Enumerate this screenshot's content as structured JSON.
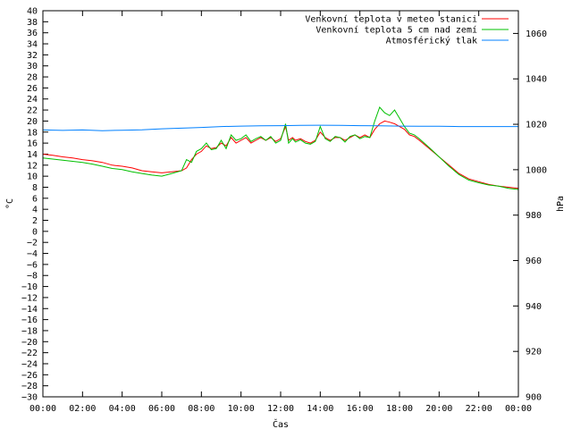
{
  "chart_data": {
    "type": "line",
    "xlabel": "Čas",
    "ylabel": "°C",
    "y2label": "hPa",
    "x_ticks": [
      "00:00",
      "02:00",
      "04:00",
      "06:00",
      "08:00",
      "10:00",
      "12:00",
      "14:00",
      "16:00",
      "18:00",
      "20:00",
      "22:00",
      "00:00"
    ],
    "xlim_hours": [
      0,
      24
    ],
    "ylim": [
      -30,
      40
    ],
    "y_ticks": [
      40,
      38,
      36,
      34,
      32,
      30,
      28,
      26,
      24,
      22,
      20,
      18,
      16,
      14,
      12,
      10,
      8,
      6,
      4,
      2,
      0,
      -2,
      -4,
      -6,
      -8,
      -10,
      -12,
      -14,
      -16,
      -18,
      -20,
      -22,
      -24,
      -26,
      -28,
      -30
    ],
    "y2lim": [
      900,
      1070
    ],
    "y2_ticks": [
      1060,
      1040,
      1020,
      1000,
      980,
      960,
      940,
      920,
      900
    ],
    "legend_position": "top-right",
    "grid": false,
    "series": [
      {
        "name": "Venkovní teplota v meteo stanici",
        "axis": "left",
        "color": "#ff0000",
        "x": [
          0,
          0.5,
          1,
          1.5,
          2,
          2.5,
          3,
          3.5,
          4,
          4.5,
          5,
          5.5,
          6,
          6.5,
          7,
          7.25,
          7.5,
          7.75,
          8,
          8.25,
          8.5,
          8.75,
          9,
          9.25,
          9.5,
          9.75,
          10,
          10.25,
          10.5,
          10.75,
          11,
          11.25,
          11.5,
          11.75,
          12,
          12.25,
          12.4,
          12.6,
          12.75,
          13,
          13.25,
          13.5,
          13.75,
          14,
          14.25,
          14.5,
          14.75,
          15,
          15.25,
          15.5,
          15.75,
          16,
          16.25,
          16.5,
          16.75,
          17,
          17.25,
          17.5,
          17.75,
          18,
          18.25,
          18.5,
          18.75,
          19,
          19.5,
          20,
          20.5,
          21,
          21.5,
          22,
          22.5,
          23,
          23.5,
          24
        ],
        "values": [
          14,
          13.8,
          13.5,
          13.3,
          13,
          12.8,
          12.5,
          12,
          11.8,
          11.5,
          11,
          10.8,
          10.6,
          10.8,
          11,
          11.5,
          13,
          14,
          14.5,
          15.5,
          15,
          15.2,
          16,
          15.5,
          17,
          16,
          16.5,
          17,
          16,
          16.5,
          17,
          16.5,
          17,
          16.3,
          16.8,
          19,
          16.5,
          17,
          16.5,
          16.8,
          16.3,
          16,
          16.5,
          18,
          17,
          16.5,
          17,
          17,
          16.5,
          17,
          17.5,
          17,
          17.5,
          17,
          18.5,
          19.5,
          20,
          19.8,
          19.5,
          19,
          18.5,
          17.5,
          17.2,
          16.5,
          15,
          13.5,
          12,
          10.5,
          9.5,
          9,
          8.5,
          8.2,
          8,
          7.8
        ]
      },
      {
        "name": "Venkovní teplota 5 cm nad zemí",
        "axis": "left",
        "color": "#00c000",
        "x": [
          0,
          0.5,
          1,
          1.5,
          2,
          2.5,
          3,
          3.5,
          4,
          4.5,
          5,
          5.5,
          6,
          6.5,
          7,
          7.25,
          7.5,
          7.75,
          8,
          8.25,
          8.5,
          8.75,
          9,
          9.25,
          9.5,
          9.75,
          10,
          10.25,
          10.5,
          10.75,
          11,
          11.25,
          11.5,
          11.75,
          12,
          12.25,
          12.4,
          12.6,
          12.75,
          13,
          13.25,
          13.5,
          13.75,
          14,
          14.25,
          14.5,
          14.75,
          15,
          15.25,
          15.5,
          15.75,
          16,
          16.25,
          16.5,
          16.75,
          17,
          17.25,
          17.5,
          17.75,
          18,
          18.25,
          18.5,
          18.75,
          19,
          19.5,
          20,
          20.5,
          21,
          21.5,
          22,
          22.5,
          23,
          23.5,
          24
        ],
        "values": [
          13.3,
          13.1,
          12.9,
          12.7,
          12.5,
          12.2,
          11.8,
          11.4,
          11.2,
          10.8,
          10.5,
          10.2,
          10,
          10.5,
          11,
          13,
          12.5,
          14.5,
          15,
          16,
          14.8,
          15,
          16.5,
          15,
          17.5,
          16.5,
          16.8,
          17.5,
          16.3,
          16.8,
          17.2,
          16.5,
          17.2,
          16,
          16.5,
          19.5,
          16,
          16.8,
          16.2,
          16.6,
          16,
          15.8,
          16.3,
          19,
          16.8,
          16.3,
          17.2,
          17,
          16.2,
          17.2,
          17.5,
          16.8,
          17.2,
          17,
          20,
          22.5,
          21.5,
          21,
          22,
          20.5,
          19,
          17.8,
          17.5,
          16.8,
          15.2,
          13.5,
          11.8,
          10.3,
          9.3,
          8.8,
          8.4,
          8.2,
          7.8,
          7.6
        ]
      },
      {
        "name": "Atmosférický tlak",
        "axis": "right",
        "color": "#0080ff",
        "x": [
          0,
          1,
          2,
          3,
          4,
          5,
          6,
          7,
          8,
          9,
          10,
          11,
          12,
          13,
          14,
          15,
          16,
          17,
          18,
          19,
          20,
          21,
          22,
          23,
          24
        ],
        "values": [
          1017.5,
          1017.3,
          1017.5,
          1017.2,
          1017.4,
          1017.6,
          1018,
          1018.3,
          1018.6,
          1019,
          1019.2,
          1019.3,
          1019.4,
          1019.5,
          1019.6,
          1019.5,
          1019.4,
          1019.3,
          1019.2,
          1019.1,
          1019.1,
          1019,
          1019,
          1019,
          1019
        ]
      }
    ]
  }
}
